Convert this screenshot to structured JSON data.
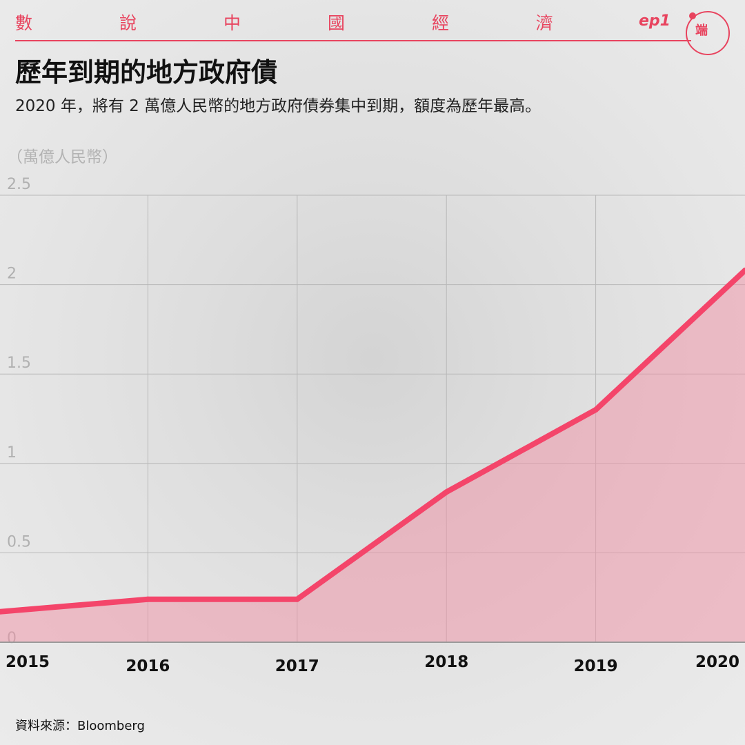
{
  "header": {
    "chars": [
      "數",
      "說",
      "中",
      "國",
      "經",
      "濟"
    ],
    "episode": "ep1",
    "logo_text": "端"
  },
  "title": "歷年到期的地方政府債",
  "subtitle": "2020 年，將有 2 萬億人民幣的地方政府債券集中到期，額度為歷年最高。",
  "source": "資料來源：Bloomberg",
  "colors": {
    "accent": "#e8435e",
    "line": "#f4456a",
    "area": "#f08fa4",
    "grid": "#b8b8b8",
    "tick": "#b0b0b0"
  },
  "chart_data": {
    "type": "area",
    "unit": "（萬億人民幣）",
    "x": [
      "2015",
      "2016",
      "2017",
      "2018",
      "2019",
      "2020"
    ],
    "series": [
      {
        "values": [
          0.17,
          0.24,
          0.24,
          0.84,
          1.3,
          2.08
        ]
      }
    ],
    "yticks": [
      "0",
      "0.5",
      "1",
      "1.5",
      "2",
      "2.5"
    ],
    "ylim": [
      0,
      2.5
    ],
    "grid": true
  }
}
